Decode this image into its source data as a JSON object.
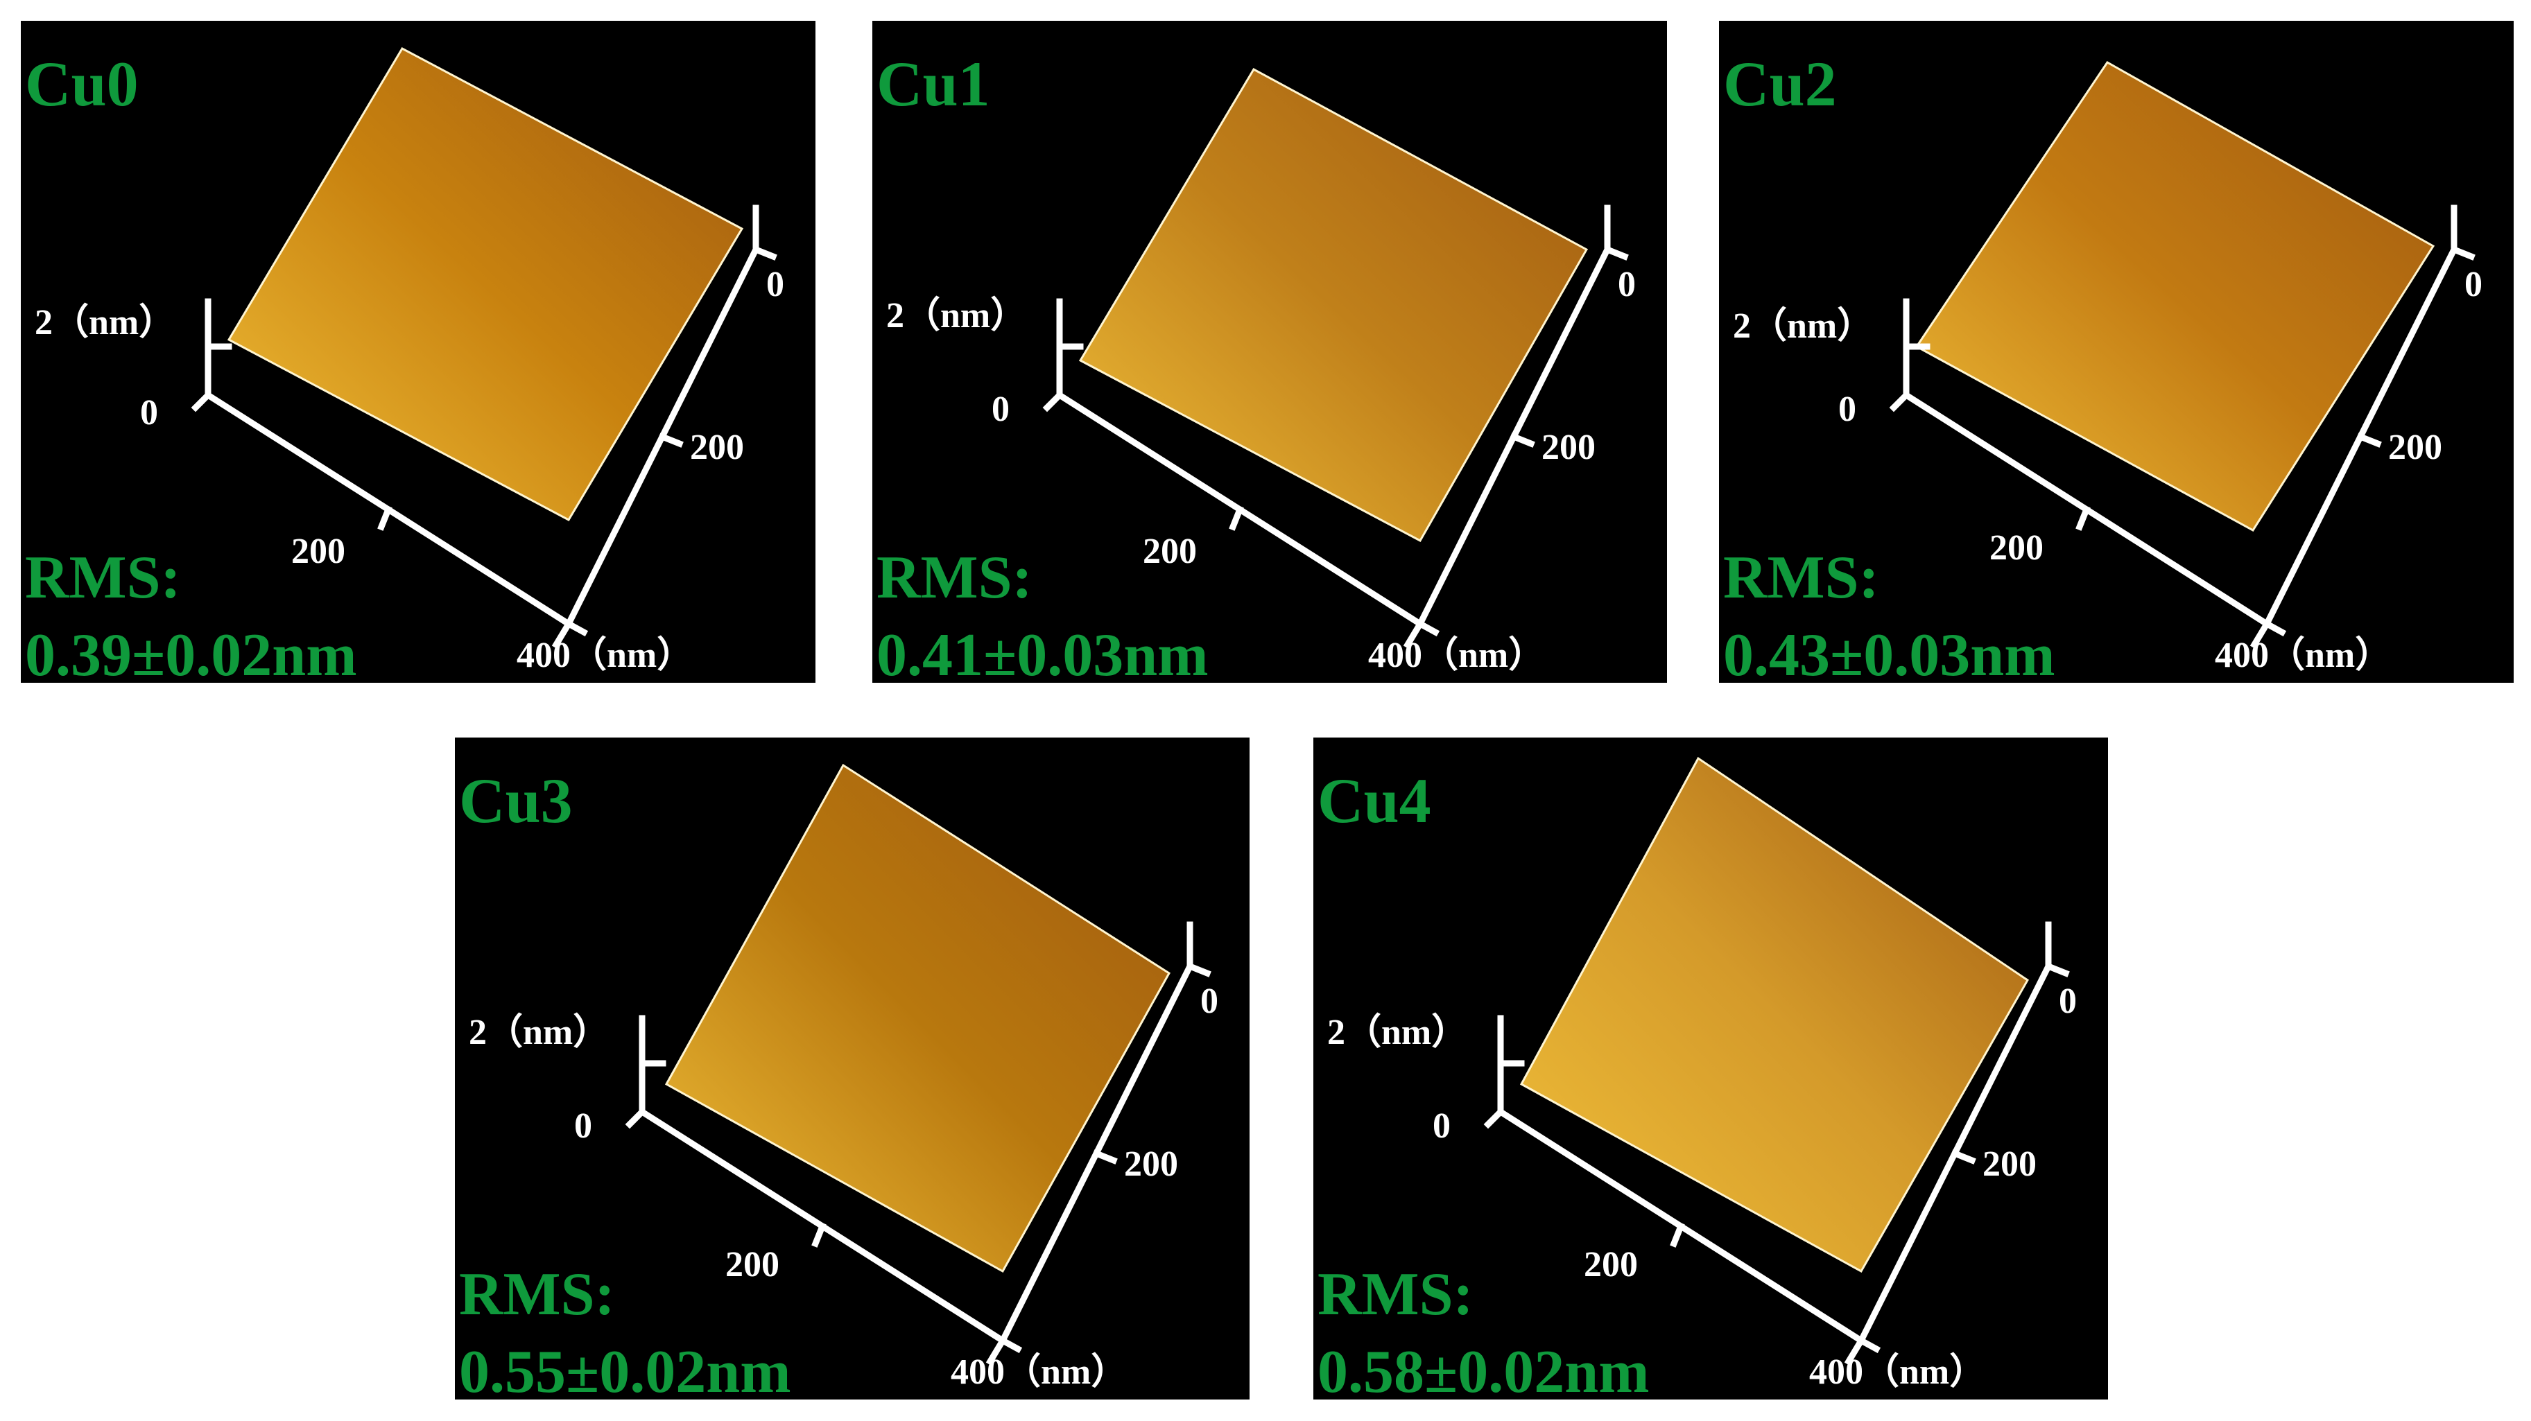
{
  "panels": [
    {
      "sample": "Cu0",
      "rms_label": "RMS:",
      "rms_value": "0.39±0.02nm",
      "z_axis_label": "2（nm）",
      "z_zero": "0",
      "x_axis_mid": "200",
      "x_axis_end": "400（nm）",
      "y_axis_zero": "0",
      "y_axis_mid": "200",
      "surface_color": "#c8820f"
    },
    {
      "sample": "Cu1",
      "rms_label": "RMS:",
      "rms_value": "0.41±0.03nm",
      "z_axis_label": "2（nm）",
      "z_zero": "0",
      "x_axis_mid": "200",
      "x_axis_end": "400（nm）",
      "y_axis_zero": "0",
      "y_axis_mid": "200",
      "surface_color": "#c0801a"
    },
    {
      "sample": "Cu2",
      "rms_label": "RMS:",
      "rms_value": "0.43±0.03nm",
      "z_axis_label": "2（nm）",
      "z_zero": "0",
      "x_axis_mid": "200",
      "x_axis_end": "400（nm）",
      "y_axis_zero": "0",
      "y_axis_mid": "200",
      "surface_color": "#c27a12"
    },
    {
      "sample": "Cu3",
      "rms_label": "RMS:",
      "rms_value": "0.55±0.02nm",
      "z_axis_label": "2（nm）",
      "z_zero": "0",
      "x_axis_mid": "200",
      "x_axis_end": "400（nm）",
      "y_axis_zero": "0",
      "y_axis_mid": "200",
      "surface_color": "#b8780e"
    },
    {
      "sample": "Cu4",
      "rms_label": "RMS:",
      "rms_value": "0.58±0.02nm",
      "z_axis_label": "2（nm）",
      "z_zero": "0",
      "x_axis_mid": "200",
      "x_axis_end": "400（nm）",
      "y_axis_zero": "0",
      "y_axis_mid": "200",
      "surface_color": "#d49a2a"
    }
  ]
}
